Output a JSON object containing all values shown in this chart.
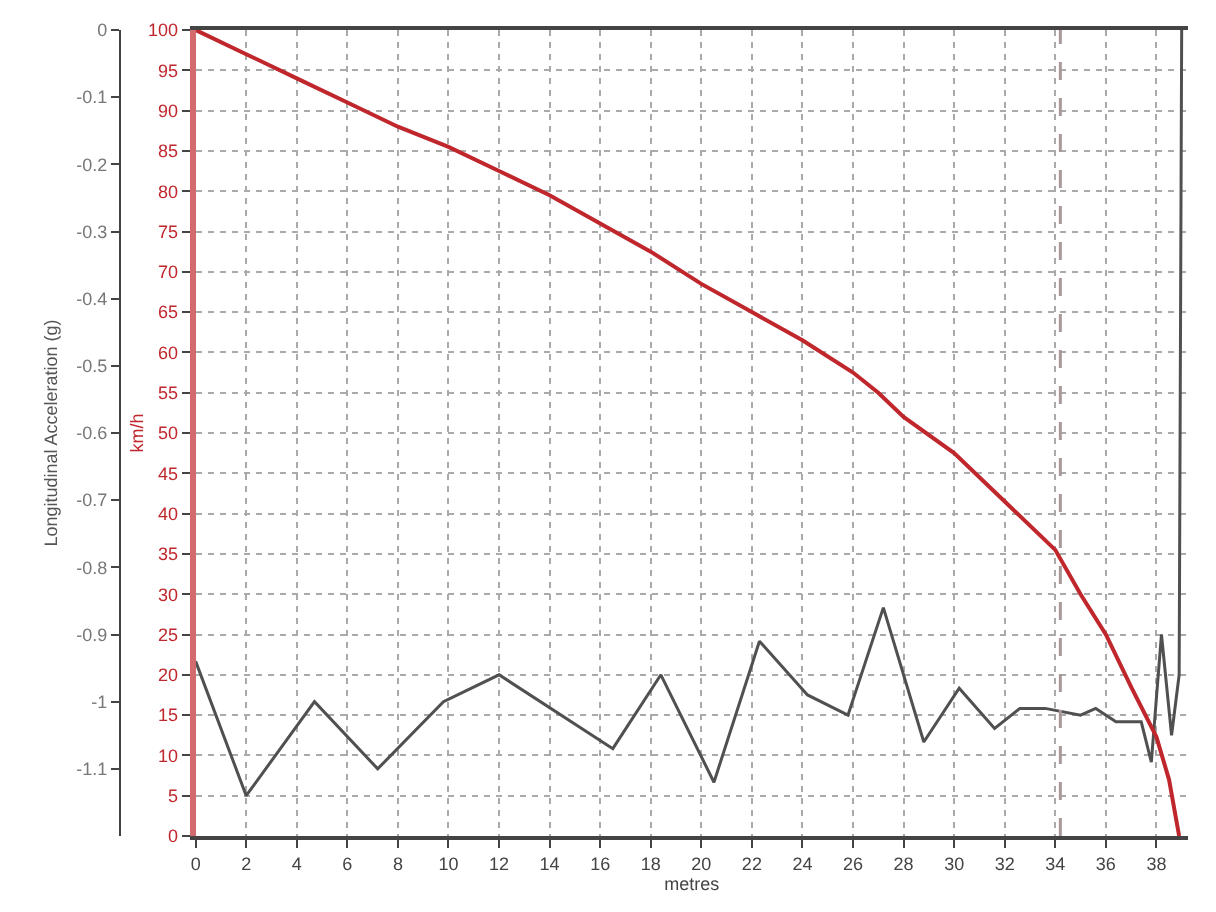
{
  "chart_data": {
    "type": "line",
    "xlabel": "metres",
    "ylabel": "Longitudinal Acceleration (g)",
    "y2label": "km/h",
    "series": [
      {
        "axis": "y2",
        "color": "#c0272d",
        "x": [
          0,
          2,
          4,
          6,
          8,
          10,
          12,
          14,
          16,
          18,
          20,
          22,
          24,
          26,
          27,
          28,
          30,
          32,
          34,
          35,
          36,
          37,
          38,
          38.5,
          38.9
        ],
        "values": [
          100,
          97,
          94,
          91,
          88,
          85.5,
          82.5,
          79.5,
          76,
          72.5,
          68.5,
          65,
          61.5,
          57.5,
          55,
          52,
          47.5,
          41.5,
          35.5,
          30,
          25,
          18.5,
          12.3,
          7,
          0
        ]
      },
      {
        "axis": "y",
        "color": "#505050",
        "x": [
          0,
          2,
          4.7,
          7.2,
          9.8,
          12,
          16.5,
          18.4,
          20.5,
          22.3,
          24.2,
          25.8,
          27.2,
          28.8,
          30.2,
          31.6,
          32.6,
          33.6,
          35,
          35.6,
          36.4,
          37.4,
          37.8,
          38.2,
          38.6,
          38.9,
          39.0
        ],
        "values": [
          -0.94,
          -1.14,
          -1.0,
          -1.1,
          -1.0,
          -0.96,
          -1.07,
          -0.96,
          -1.12,
          -0.91,
          -0.99,
          -1.02,
          -0.86,
          -1.06,
          -0.98,
          -1.04,
          -1.01,
          -1.01,
          -1.02,
          -1.01,
          -1.03,
          -1.03,
          -1.09,
          -0.9,
          -1.05,
          -0.96,
          0
        ]
      }
    ],
    "xlim": [
      0,
      39.25
    ],
    "xticks": [
      0,
      2,
      4,
      6,
      8,
      10,
      12,
      14,
      16,
      18,
      20,
      22,
      24,
      26,
      28,
      30,
      32,
      34,
      36,
      38
    ],
    "ylim": [
      -1.2,
      0
    ],
    "yticks": [
      0,
      -0.1,
      -0.2,
      -0.3,
      -0.4,
      -0.5,
      -0.6,
      -0.7,
      -0.8,
      -0.9,
      -1,
      -1.1
    ],
    "y2lim": [
      0,
      100
    ],
    "y2ticks": [
      0,
      5,
      10,
      15,
      20,
      25,
      30,
      35,
      40,
      45,
      50,
      55,
      60,
      65,
      70,
      75,
      80,
      85,
      90,
      95,
      100
    ],
    "ref_lines": [
      {
        "axis": "x",
        "value": 34.2,
        "color": "#a89898",
        "line_style": "dashed"
      }
    ],
    "grid": true,
    "legend": false,
    "marker": "none",
    "line_style": "solid"
  }
}
